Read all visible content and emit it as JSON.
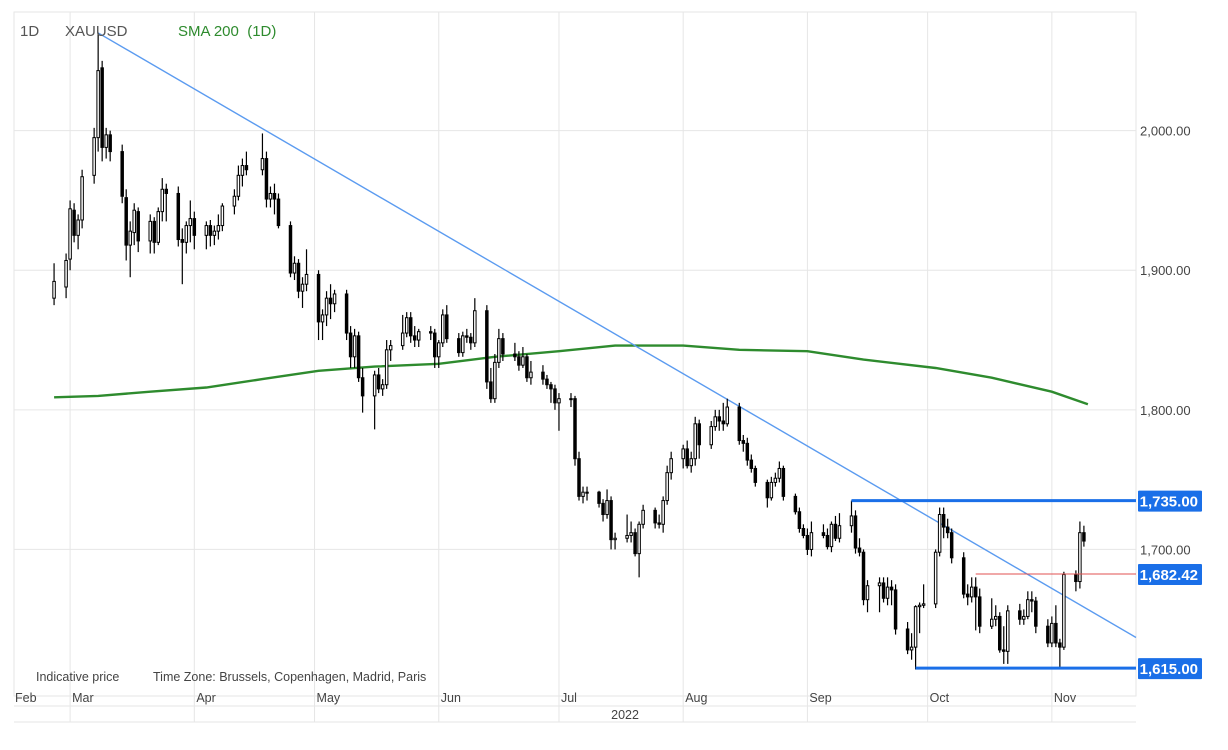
{
  "header": {
    "period": "1D",
    "symbol": "XAUUSD",
    "indicator": "SMA 200  (1D)"
  },
  "footer_note": {
    "indicative": "Indicative price",
    "timezone": "Time Zone: Brussels, Copenhagen, Madrid, Paris"
  },
  "colors": {
    "bull": "#ffffff",
    "bear": "#000000",
    "wick": "#000000",
    "sma": "#2e8b2e",
    "trendline": "#5b9bf0",
    "range": "#1a6fe8",
    "entry": "#e05050",
    "grid": "#e6e6e6"
  },
  "chart_data": {
    "type": "candlestick",
    "symbol": "XAUUSD",
    "interval": "1D",
    "year_label": "2022",
    "x_labels": [
      "Feb",
      "Mar",
      "Apr",
      "May",
      "Jun",
      "Jul",
      "Aug",
      "Sep",
      "Oct",
      "Nov"
    ],
    "y_ticks": [
      "2,000.00",
      "1,900.00",
      "1,800.00",
      "1,700.00"
    ],
    "ylim": [
      1595,
      2085
    ],
    "grid": true,
    "price_labels": [
      "1,735.00",
      "1,682.42",
      "1,615.00"
    ],
    "levels": {
      "resistance": 1735.0,
      "current": 1682.42,
      "support": 1615.0
    },
    "trendline": [
      [
        "2022-03-08",
        2070
      ],
      [
        "2022-11-10",
        1657
      ]
    ],
    "candles": [
      [
        "2022-02-25",
        1880,
        1905,
        1875,
        1892
      ],
      [
        "2022-02-28",
        1888,
        1912,
        1880,
        1907
      ],
      [
        "2022-03-01",
        1908,
        1950,
        1900,
        1944
      ],
      [
        "2022-03-02",
        1943,
        1948,
        1920,
        1925
      ],
      [
        "2022-03-03",
        1925,
        1940,
        1915,
        1936
      ],
      [
        "2022-03-04",
        1936,
        1972,
        1930,
        1967
      ],
      [
        "2022-03-07",
        1968,
        2002,
        1962,
        1995
      ],
      [
        "2022-03-08",
        1995,
        2070,
        1985,
        2043
      ],
      [
        "2022-03-09",
        2045,
        2050,
        1978,
        1988
      ],
      [
        "2022-03-10",
        1988,
        2002,
        1980,
        1997
      ],
      [
        "2022-03-11",
        1997,
        2000,
        1978,
        1985
      ],
      [
        "2022-03-14",
        1985,
        1990,
        1948,
        1953
      ],
      [
        "2022-03-15",
        1952,
        1958,
        1907,
        1918
      ],
      [
        "2022-03-16",
        1918,
        1935,
        1895,
        1928
      ],
      [
        "2022-03-17",
        1927,
        1948,
        1918,
        1943
      ],
      [
        "2022-03-18",
        1942,
        1945,
        1913,
        1921
      ],
      [
        "2022-03-21",
        1921,
        1940,
        1912,
        1935
      ],
      [
        "2022-03-22",
        1935,
        1938,
        1912,
        1920
      ],
      [
        "2022-03-23",
        1920,
        1945,
        1918,
        1942
      ],
      [
        "2022-03-24",
        1942,
        1966,
        1935,
        1958
      ],
      [
        "2022-03-25",
        1958,
        1962,
        1935,
        1955
      ],
      [
        "2022-03-28",
        1955,
        1960,
        1917,
        1922
      ],
      [
        "2022-03-29",
        1922,
        1930,
        1890,
        1920
      ],
      [
        "2022-03-30",
        1920,
        1935,
        1912,
        1932
      ],
      [
        "2022-03-31",
        1932,
        1950,
        1920,
        1937
      ],
      [
        "2022-04-01",
        1937,
        1942,
        1915,
        1925
      ],
      [
        "2022-04-04",
        1925,
        1935,
        1915,
        1932
      ],
      [
        "2022-04-05",
        1932,
        1936,
        1917,
        1925
      ],
      [
        "2022-04-06",
        1925,
        1932,
        1918,
        1928
      ],
      [
        "2022-04-07",
        1928,
        1940,
        1922,
        1932
      ],
      [
        "2022-04-08",
        1932,
        1948,
        1928,
        1946
      ],
      [
        "2022-04-11",
        1946,
        1958,
        1940,
        1953
      ],
      [
        "2022-04-12",
        1953,
        1975,
        1950,
        1968
      ],
      [
        "2022-04-13",
        1968,
        1980,
        1960,
        1975
      ],
      [
        "2022-04-14",
        1975,
        1985,
        1968,
        1972
      ],
      [
        "2022-04-18",
        1972,
        1998,
        1968,
        1980
      ],
      [
        "2022-04-19",
        1980,
        1985,
        1945,
        1951
      ],
      [
        "2022-04-20",
        1951,
        1960,
        1945,
        1955
      ],
      [
        "2022-04-21",
        1955,
        1962,
        1940,
        1951
      ],
      [
        "2022-04-22",
        1951,
        1955,
        1930,
        1932
      ],
      [
        "2022-04-25",
        1932,
        1935,
        1895,
        1898
      ],
      [
        "2022-04-26",
        1898,
        1910,
        1893,
        1905
      ],
      [
        "2022-04-27",
        1905,
        1908,
        1880,
        1885
      ],
      [
        "2022-04-28",
        1885,
        1895,
        1873,
        1890
      ],
      [
        "2022-04-29",
        1890,
        1915,
        1885,
        1897
      ],
      [
        "2022-05-02",
        1897,
        1900,
        1850,
        1863
      ],
      [
        "2022-05-03",
        1863,
        1872,
        1850,
        1868
      ],
      [
        "2022-05-04",
        1868,
        1885,
        1860,
        1880
      ],
      [
        "2022-05-05",
        1880,
        1890,
        1865,
        1876
      ],
      [
        "2022-05-06",
        1876,
        1886,
        1870,
        1883
      ],
      [
        "2022-05-09",
        1883,
        1886,
        1850,
        1855
      ],
      [
        "2022-05-10",
        1855,
        1860,
        1830,
        1838
      ],
      [
        "2022-05-11",
        1838,
        1858,
        1830,
        1853
      ],
      [
        "2022-05-12",
        1853,
        1856,
        1820,
        1823
      ],
      [
        "2022-05-13",
        1823,
        1830,
        1798,
        1810
      ],
      [
        "2022-05-16",
        1810,
        1828,
        1786,
        1825
      ],
      [
        "2022-05-17",
        1825,
        1830,
        1812,
        1815
      ],
      [
        "2022-05-18",
        1815,
        1822,
        1810,
        1818
      ],
      [
        "2022-05-19",
        1818,
        1850,
        1815,
        1843
      ],
      [
        "2022-05-20",
        1843,
        1850,
        1835,
        1846
      ],
      [
        "2022-05-23",
        1846,
        1868,
        1843,
        1855
      ],
      [
        "2022-05-24",
        1855,
        1870,
        1852,
        1866
      ],
      [
        "2022-05-25",
        1866,
        1870,
        1848,
        1853
      ],
      [
        "2022-05-26",
        1853,
        1860,
        1845,
        1850
      ],
      [
        "2022-05-27",
        1850,
        1858,
        1845,
        1856
      ],
      [
        "2022-05-30",
        1856,
        1860,
        1850,
        1855
      ],
      [
        "2022-05-31",
        1855,
        1858,
        1830,
        1838
      ],
      [
        "2022-06-01",
        1838,
        1850,
        1830,
        1848
      ],
      [
        "2022-06-02",
        1848,
        1872,
        1845,
        1868
      ],
      [
        "2022-06-03",
        1868,
        1875,
        1848,
        1851
      ],
      [
        "2022-06-06",
        1851,
        1855,
        1838,
        1841
      ],
      [
        "2022-06-07",
        1841,
        1856,
        1838,
        1853
      ],
      [
        "2022-06-08",
        1853,
        1858,
        1848,
        1852
      ],
      [
        "2022-06-09",
        1852,
        1855,
        1843,
        1848
      ],
      [
        "2022-06-10",
        1848,
        1880,
        1845,
        1871
      ],
      [
        "2022-06-13",
        1871,
        1875,
        1815,
        1820
      ],
      [
        "2022-06-14",
        1820,
        1830,
        1805,
        1808
      ],
      [
        "2022-06-15",
        1808,
        1840,
        1805,
        1834
      ],
      [
        "2022-06-16",
        1834,
        1858,
        1830,
        1851
      ],
      [
        "2022-06-17",
        1851,
        1855,
        1835,
        1840
      ],
      [
        "2022-06-20",
        1840,
        1848,
        1835,
        1838
      ],
      [
        "2022-06-21",
        1838,
        1842,
        1828,
        1832
      ],
      [
        "2022-06-22",
        1832,
        1845,
        1830,
        1838
      ],
      [
        "2022-06-23",
        1838,
        1840,
        1820,
        1823
      ],
      [
        "2022-06-24",
        1823,
        1835,
        1818,
        1827
      ],
      [
        "2022-06-27",
        1827,
        1832,
        1818,
        1822
      ],
      [
        "2022-06-28",
        1822,
        1825,
        1815,
        1818
      ],
      [
        "2022-06-29",
        1818,
        1820,
        1805,
        1815
      ],
      [
        "2022-06-30",
        1815,
        1818,
        1800,
        1805
      ],
      [
        "2022-07-01",
        1805,
        1812,
        1785,
        1808
      ],
      [
        "2022-07-04",
        1808,
        1812,
        1802,
        1808
      ],
      [
        "2022-07-05",
        1808,
        1810,
        1760,
        1765
      ],
      [
        "2022-07-06",
        1765,
        1770,
        1735,
        1738
      ],
      [
        "2022-07-07",
        1738,
        1745,
        1733,
        1741
      ],
      [
        "2022-07-08",
        1741,
        1745,
        1735,
        1741
      ],
      [
        "2022-07-11",
        1741,
        1742,
        1730,
        1733
      ],
      [
        "2022-07-12",
        1733,
        1736,
        1720,
        1725
      ],
      [
        "2022-07-13",
        1725,
        1743,
        1722,
        1735
      ],
      [
        "2022-07-14",
        1735,
        1738,
        1700,
        1707
      ],
      [
        "2022-07-15",
        1707,
        1712,
        1700,
        1708
      ],
      [
        "2022-07-18",
        1708,
        1725,
        1705,
        1710
      ],
      [
        "2022-07-19",
        1710,
        1720,
        1705,
        1712
      ],
      [
        "2022-07-20",
        1712,
        1715,
        1695,
        1697
      ],
      [
        "2022-07-21",
        1697,
        1720,
        1680,
        1718
      ],
      [
        "2022-07-22",
        1718,
        1732,
        1715,
        1728
      ],
      [
        "2022-07-25",
        1728,
        1730,
        1715,
        1719
      ],
      [
        "2022-07-26",
        1719,
        1725,
        1715,
        1718
      ],
      [
        "2022-07-27",
        1718,
        1738,
        1712,
        1735
      ],
      [
        "2022-07-28",
        1735,
        1760,
        1732,
        1755
      ],
      [
        "2022-07-29",
        1755,
        1770,
        1750,
        1765
      ],
      [
        "2022-08-01",
        1765,
        1775,
        1758,
        1772
      ],
      [
        "2022-08-02",
        1772,
        1778,
        1758,
        1760
      ],
      [
        "2022-08-03",
        1760,
        1770,
        1755,
        1765
      ],
      [
        "2022-08-04",
        1765,
        1795,
        1760,
        1790
      ],
      [
        "2022-08-05",
        1790,
        1793,
        1765,
        1775
      ],
      [
        "2022-08-08",
        1775,
        1792,
        1772,
        1788
      ],
      [
        "2022-08-09",
        1788,
        1800,
        1785,
        1795
      ],
      [
        "2022-08-10",
        1795,
        1800,
        1785,
        1792
      ],
      [
        "2022-08-11",
        1792,
        1805,
        1785,
        1790
      ],
      [
        "2022-08-12",
        1790,
        1808,
        1788,
        1802
      ],
      [
        "2022-08-15",
        1802,
        1805,
        1775,
        1778
      ],
      [
        "2022-08-16",
        1778,
        1782,
        1770,
        1776
      ],
      [
        "2022-08-17",
        1776,
        1780,
        1760,
        1764
      ],
      [
        "2022-08-18",
        1764,
        1768,
        1755,
        1758
      ],
      [
        "2022-08-19",
        1758,
        1760,
        1745,
        1748
      ],
      [
        "2022-08-22",
        1748,
        1750,
        1730,
        1737
      ],
      [
        "2022-08-23",
        1737,
        1752,
        1735,
        1748
      ],
      [
        "2022-08-24",
        1748,
        1755,
        1745,
        1751
      ],
      [
        "2022-08-25",
        1751,
        1763,
        1748,
        1758
      ],
      [
        "2022-08-26",
        1758,
        1760,
        1735,
        1738
      ],
      [
        "2022-08-29",
        1738,
        1740,
        1725,
        1727
      ],
      [
        "2022-08-30",
        1727,
        1730,
        1712,
        1715
      ],
      [
        "2022-08-31",
        1715,
        1718,
        1708,
        1710
      ],
      [
        "2022-09-01",
        1710,
        1715,
        1696,
        1700
      ],
      [
        "2022-09-02",
        1700,
        1720,
        1695,
        1712
      ],
      [
        "2022-09-05",
        1712,
        1718,
        1708,
        1710
      ],
      [
        "2022-09-06",
        1710,
        1715,
        1700,
        1702
      ],
      [
        "2022-09-07",
        1702,
        1720,
        1698,
        1718
      ],
      [
        "2022-09-08",
        1718,
        1724,
        1706,
        1708
      ],
      [
        "2022-09-09",
        1708,
        1726,
        1705,
        1717
      ],
      [
        "2022-09-12",
        1717,
        1735,
        1712,
        1724
      ],
      [
        "2022-09-13",
        1724,
        1728,
        1697,
        1701
      ],
      [
        "2022-09-14",
        1701,
        1708,
        1695,
        1698
      ],
      [
        "2022-09-15",
        1698,
        1700,
        1660,
        1664
      ],
      [
        "2022-09-16",
        1664,
        1678,
        1655,
        1674
      ],
      [
        "2022-09-19",
        1674,
        1680,
        1655,
        1676
      ],
      [
        "2022-09-20",
        1676,
        1680,
        1662,
        1665
      ],
      [
        "2022-09-21",
        1665,
        1680,
        1660,
        1673
      ],
      [
        "2022-09-22",
        1673,
        1678,
        1660,
        1671
      ],
      [
        "2022-09-23",
        1671,
        1675,
        1639,
        1643
      ],
      [
        "2022-09-26",
        1643,
        1648,
        1625,
        1628
      ],
      [
        "2022-09-27",
        1628,
        1640,
        1621,
        1630
      ],
      [
        "2022-09-28",
        1630,
        1660,
        1614,
        1659
      ],
      [
        "2022-09-29",
        1659,
        1662,
        1640,
        1660
      ],
      [
        "2022-09-30",
        1660,
        1675,
        1658,
        1661
      ],
      [
        "2022-10-03",
        1661,
        1700,
        1658,
        1698
      ],
      [
        "2022-10-04",
        1698,
        1730,
        1695,
        1725
      ],
      [
        "2022-10-05",
        1725,
        1730,
        1708,
        1716
      ],
      [
        "2022-10-06",
        1716,
        1722,
        1708,
        1712
      ],
      [
        "2022-10-07",
        1712,
        1715,
        1690,
        1694
      ],
      [
        "2022-10-10",
        1694,
        1698,
        1665,
        1668
      ],
      [
        "2022-10-11",
        1668,
        1675,
        1660,
        1666
      ],
      [
        "2022-10-12",
        1666,
        1680,
        1662,
        1673
      ],
      [
        "2022-10-13",
        1673,
        1680,
        1642,
        1666
      ],
      [
        "2022-10-14",
        1666,
        1672,
        1640,
        1645
      ],
      [
        "2022-10-17",
        1645,
        1665,
        1643,
        1650
      ],
      [
        "2022-10-18",
        1650,
        1660,
        1645,
        1652
      ],
      [
        "2022-10-19",
        1652,
        1655,
        1626,
        1628
      ],
      [
        "2022-10-20",
        1628,
        1645,
        1618,
        1627
      ],
      [
        "2022-10-21",
        1627,
        1660,
        1618,
        1656
      ],
      [
        "2022-10-24",
        1656,
        1661,
        1646,
        1650
      ],
      [
        "2022-10-25",
        1650,
        1657,
        1646,
        1652
      ],
      [
        "2022-10-26",
        1652,
        1670,
        1650,
        1664
      ],
      [
        "2022-10-27",
        1664,
        1670,
        1655,
        1663
      ],
      [
        "2022-10-28",
        1663,
        1666,
        1640,
        1645
      ],
      [
        "2022-10-31",
        1645,
        1650,
        1630,
        1633
      ],
      [
        "2022-11-01",
        1633,
        1652,
        1630,
        1647
      ],
      [
        "2022-11-02",
        1647,
        1660,
        1630,
        1633
      ],
      [
        "2022-11-03",
        1633,
        1636,
        1615,
        1630
      ],
      [
        "2022-11-04",
        1630,
        1684,
        1628,
        1682
      ],
      [
        "2022-11-07",
        1682,
        1685,
        1670,
        1677
      ],
      [
        "2022-11-08",
        1677,
        1720,
        1672,
        1712
      ],
      [
        "2022-11-09",
        1712,
        1717,
        1702,
        1706
      ]
    ],
    "series": [
      {
        "name": "SMA 200  (1D)",
        "type": "line",
        "points": [
          [
            "2022-02-25",
            1809
          ],
          [
            "2022-03-08",
            1810
          ],
          [
            "2022-03-21",
            1813
          ],
          [
            "2022-04-04",
            1816
          ],
          [
            "2022-04-18",
            1822
          ],
          [
            "2022-05-02",
            1828
          ],
          [
            "2022-05-16",
            1831
          ],
          [
            "2022-06-01",
            1833
          ],
          [
            "2022-06-15",
            1838
          ],
          [
            "2022-07-01",
            1842
          ],
          [
            "2022-07-15",
            1846
          ],
          [
            "2022-08-01",
            1846
          ],
          [
            "2022-08-15",
            1843
          ],
          [
            "2022-09-01",
            1842
          ],
          [
            "2022-09-15",
            1836
          ],
          [
            "2022-10-03",
            1830
          ],
          [
            "2022-10-17",
            1823
          ],
          [
            "2022-11-01",
            1813
          ],
          [
            "2022-11-10",
            1804
          ]
        ]
      }
    ]
  }
}
